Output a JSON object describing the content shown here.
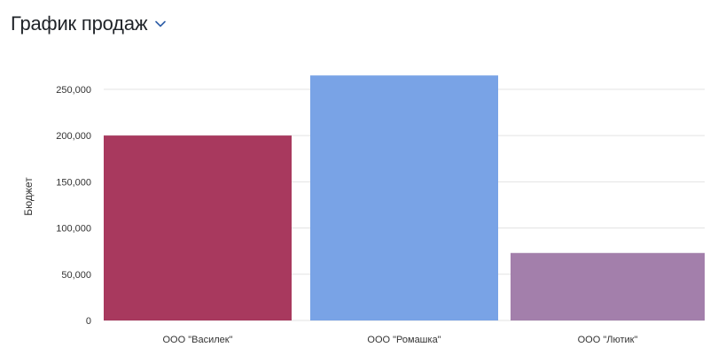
{
  "header": {
    "title": "График продаж"
  },
  "chart_data": {
    "type": "bar",
    "title": "График продаж",
    "xlabel": "",
    "ylabel": "Бюджет",
    "categories": [
      "ООО \"Василек\"",
      "ООО \"Ромашка\"",
      "ООО \"Лютик\""
    ],
    "values": [
      200000,
      265000,
      73000
    ],
    "colors": [
      "#a8395e",
      "#79a3e6",
      "#a37fab"
    ],
    "ylim": [
      0,
      270000
    ],
    "yticks": [
      0,
      50000,
      100000,
      150000,
      200000,
      250000
    ],
    "ytick_labels": [
      "0",
      "50,000",
      "100,000",
      "150,000",
      "200,000",
      "250,000"
    ],
    "grid": true,
    "legend": "none"
  }
}
